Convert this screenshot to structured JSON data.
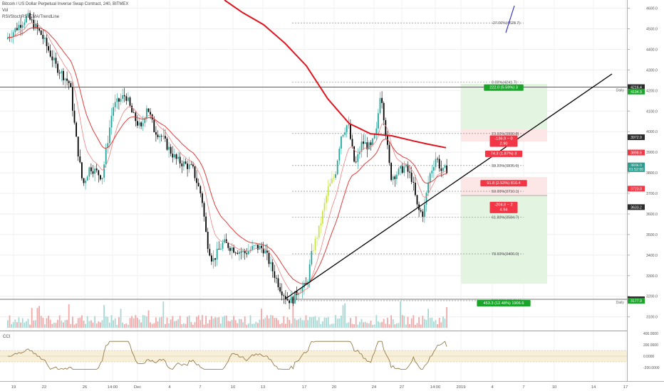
{
  "legend": {
    "symbol_line": "Bitcoin / US Dollar Perpetual Inverse Swap Contract, 240, BITMEX",
    "vol_label": "Vol",
    "indicators_line": "RSI/StochRSI/EMA/TrendLine"
  },
  "cci_label": "CCI",
  "colors": {
    "up": "#26a69a",
    "down": "#000000",
    "highlight": "#c8e64c",
    "ema_long": "#e0141e",
    "ema_mid": "#e03c3c",
    "ema_short": "#f08080",
    "trendline": "#000000",
    "profit_zone": "#e3f4e1",
    "loss_zone": "#fde6e6",
    "tag_red": "#f23645",
    "tag_green": "#1aa52a",
    "cci_line": "#8a6d3b",
    "cci_band": "#f8efd8",
    "blue_line": "#3535c9"
  },
  "chart_data": {
    "type": "candlestick",
    "price_axis": {
      "ylim": [
        3040,
        4640
      ],
      "ticks": [
        4600.0,
        4500.0,
        4400.0,
        4300.0,
        4200.0,
        4100.0,
        4000.0,
        3900.0,
        3800.0,
        3700.0,
        3600.0,
        3500.0,
        3400.0,
        3300.0,
        3200.0,
        3100.0
      ],
      "tick_labels": [
        "4600.0",
        "4500.0",
        "4400.0",
        "4300.0",
        "4200.0",
        "4100.0",
        "4000.0",
        "3900.0",
        "3800.0",
        "3700.0",
        "3600.0",
        "3500.0",
        "3400.0",
        "3300.0",
        "3200.0",
        "3100.0"
      ]
    },
    "time_axis": {
      "tick_labels": [
        "19",
        "22",
        "26",
        "14:00",
        "Dec",
        "4",
        "7",
        "10",
        "13",
        "17",
        "20",
        "24",
        "27",
        "14:00",
        "2019",
        "4",
        "7",
        "10",
        "14",
        "17"
      ]
    },
    "price_tags": [
      {
        "label": "4216.4",
        "price": 4216.4,
        "color": "dark"
      },
      {
        "label": "4194.9",
        "price": 4194.9,
        "color": "green"
      },
      {
        "label": "3972.9",
        "price": 3972.9,
        "color": "dark"
      },
      {
        "label": "3898.6",
        "price": 3898.6,
        "color": "red"
      },
      {
        "label": "3836.0",
        "price": 3836.0,
        "color": "teal"
      },
      {
        "label": "01:52:00",
        "price": 3818.0,
        "color": "teal"
      },
      {
        "label": "3723.0",
        "price": 3723.0,
        "color": "red"
      },
      {
        "label": "3633.2",
        "price": 3633.2,
        "color": "dark"
      },
      {
        "label": "3185.1",
        "price": 3185.1,
        "color": "dark"
      },
      {
        "label": "3177.9",
        "price": 3177.9,
        "color": "green"
      }
    ],
    "horizontal_lines": [
      {
        "price": 4216.4,
        "label": "Daily"
      },
      {
        "price": 3185.1,
        "label": "Daily"
      }
    ],
    "fib_levels": [
      {
        "label": "-27.00%(4528.7)",
        "price": 4528.7
      },
      {
        "label": "0.00%(4241.7)",
        "price": 4241.7
      },
      {
        "label": "23.60%(3990.8)",
        "price": 3990.8
      },
      {
        "label": "38.20%(3835.6)",
        "price": 3835.6
      },
      {
        "label": "50.00%(3710.1)",
        "price": 3710.1
      },
      {
        "label": "61.80%(3584.7)",
        "price": 3584.7
      },
      {
        "label": "78.60%(3406.0)",
        "price": 3406.0
      },
      {
        "label": "100.00%(3178.5)",
        "price": 3178.5
      }
    ],
    "position_tools": [
      {
        "tags": [
          "222.0 (5.59%) 3"
        ],
        "color": "green",
        "price": 4216
      },
      {
        "tags": [
          "-136.9 − 0",
          "2.90"
        ],
        "color": "red",
        "price": 3968
      },
      {
        "tags": [
          "74.3 (1.87%) 3"
        ],
        "color": "red",
        "price": 3894
      },
      {
        "tags": [
          "91.8 (2.53%) 816.4"
        ],
        "color": "red",
        "price": 3751
      },
      {
        "tags": [
          "-204.8 − 2",
          "4.94"
        ],
        "color": "red",
        "price": 3645
      },
      {
        "tags": [
          "453.3 (12.48%) 1906.6"
        ],
        "color": "green",
        "price": 3168
      }
    ],
    "cci_axis": {
      "ticks": [
        400,
        200,
        0,
        -200
      ],
      "tick_labels": [
        "400.0000",
        "200.0000",
        "0.0000",
        "-200.0000"
      ],
      "band": [
        -100,
        100
      ]
    }
  }
}
